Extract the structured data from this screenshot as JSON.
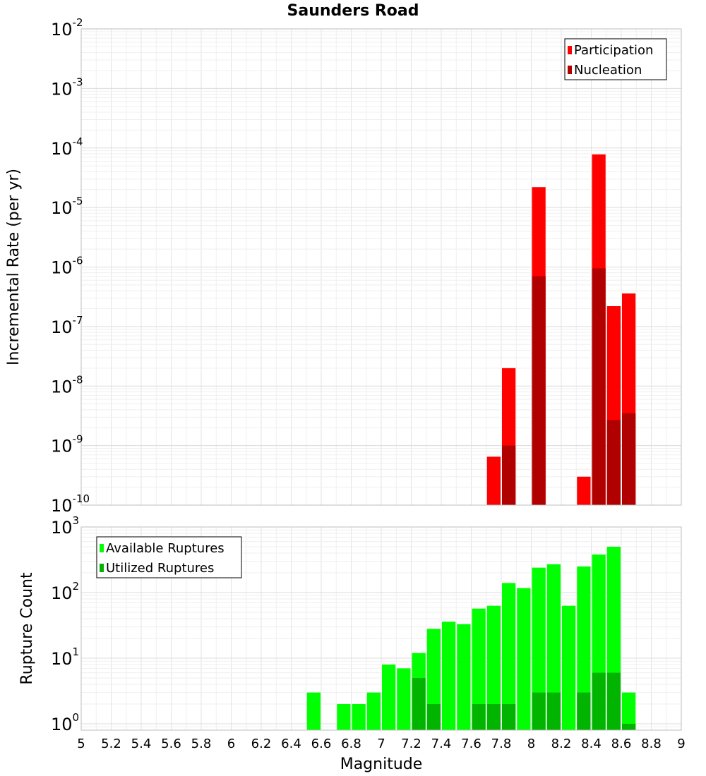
{
  "chart_data": {
    "title": "Saunders Road",
    "xlabel": "Magnitude",
    "xlim": [
      5,
      9
    ],
    "x_ticks": [
      "5",
      "5.2",
      "5.4",
      "5.6",
      "5.8",
      "6",
      "6.2",
      "6.4",
      "6.6",
      "6.8",
      "7",
      "7.2",
      "7.4",
      "7.6",
      "7.8",
      "8",
      "8.2",
      "8.4",
      "8.6",
      "8.8",
      "9"
    ],
    "grid": true,
    "panels": [
      {
        "type": "bar",
        "ylabel": "Incremental Rate (per yr)",
        "y_scale": "log",
        "ylim": [
          1e-10,
          0.01
        ],
        "y_ticks": [
          {
            "base": "10",
            "exp": "-10"
          },
          {
            "base": "10",
            "exp": "-9"
          },
          {
            "base": "10",
            "exp": "-8"
          },
          {
            "base": "10",
            "exp": "-7"
          },
          {
            "base": "10",
            "exp": "-6"
          },
          {
            "base": "10",
            "exp": "-5"
          },
          {
            "base": "10",
            "exp": "-4"
          },
          {
            "base": "10",
            "exp": "-3"
          },
          {
            "base": "10",
            "exp": "-2"
          }
        ],
        "legend_position": "top-right",
        "bar_width": 0.1,
        "series": [
          {
            "name": "Participation",
            "color": "#ff0000",
            "points": [
              {
                "x": 7.75,
                "y": 6.5e-10
              },
              {
                "x": 7.85,
                "y": 2e-08
              },
              {
                "x": 8.05,
                "y": 2.2e-05
              },
              {
                "x": 8.35,
                "y": 3e-10
              },
              {
                "x": 8.45,
                "y": 7.8e-05
              },
              {
                "x": 8.55,
                "y": 2.2e-07
              },
              {
                "x": 8.65,
                "y": 3.6e-07
              }
            ]
          },
          {
            "name": "Nucleation",
            "color": "#b00000",
            "points": [
              {
                "x": 7.85,
                "y": 1e-09
              },
              {
                "x": 8.05,
                "y": 7e-07
              },
              {
                "x": 8.45,
                "y": 9.5e-07
              },
              {
                "x": 8.55,
                "y": 2.7e-09
              },
              {
                "x": 8.65,
                "y": 3.5e-09
              }
            ]
          }
        ]
      },
      {
        "type": "bar",
        "ylabel": "Rupture Count",
        "y_scale": "log",
        "ylim": [
          0.8,
          1000
        ],
        "y_ticks": [
          {
            "base": "10",
            "exp": "0"
          },
          {
            "base": "10",
            "exp": "1"
          },
          {
            "base": "10",
            "exp": "2"
          },
          {
            "base": "10",
            "exp": "3"
          }
        ],
        "legend_position": "top-left",
        "bar_width": 0.1,
        "series": [
          {
            "name": "Available Ruptures",
            "color": "#00ff00",
            "points": [
              {
                "x": 6.55,
                "y": 3
              },
              {
                "x": 6.75,
                "y": 2
              },
              {
                "x": 6.85,
                "y": 2
              },
              {
                "x": 6.95,
                "y": 3
              },
              {
                "x": 7.05,
                "y": 8
              },
              {
                "x": 7.15,
                "y": 7
              },
              {
                "x": 7.25,
                "y": 12
              },
              {
                "x": 7.35,
                "y": 28
              },
              {
                "x": 7.45,
                "y": 36
              },
              {
                "x": 7.55,
                "y": 33
              },
              {
                "x": 7.65,
                "y": 57
              },
              {
                "x": 7.75,
                "y": 63
              },
              {
                "x": 7.85,
                "y": 140
              },
              {
                "x": 7.95,
                "y": 117
              },
              {
                "x": 8.05,
                "y": 240
              },
              {
                "x": 8.15,
                "y": 270
              },
              {
                "x": 8.25,
                "y": 63
              },
              {
                "x": 8.35,
                "y": 250
              },
              {
                "x": 8.45,
                "y": 380
              },
              {
                "x": 8.55,
                "y": 500
              },
              {
                "x": 8.65,
                "y": 3
              }
            ]
          },
          {
            "name": "Utilized Ruptures",
            "color": "#00b400",
            "points": [
              {
                "x": 7.25,
                "y": 5
              },
              {
                "x": 7.35,
                "y": 2
              },
              {
                "x": 7.65,
                "y": 2
              },
              {
                "x": 7.75,
                "y": 2
              },
              {
                "x": 7.85,
                "y": 2
              },
              {
                "x": 8.05,
                "y": 3
              },
              {
                "x": 8.15,
                "y": 3
              },
              {
                "x": 8.35,
                "y": 3
              },
              {
                "x": 8.45,
                "y": 6
              },
              {
                "x": 8.55,
                "y": 6
              },
              {
                "x": 8.65,
                "y": 1
              }
            ]
          }
        ]
      }
    ]
  }
}
